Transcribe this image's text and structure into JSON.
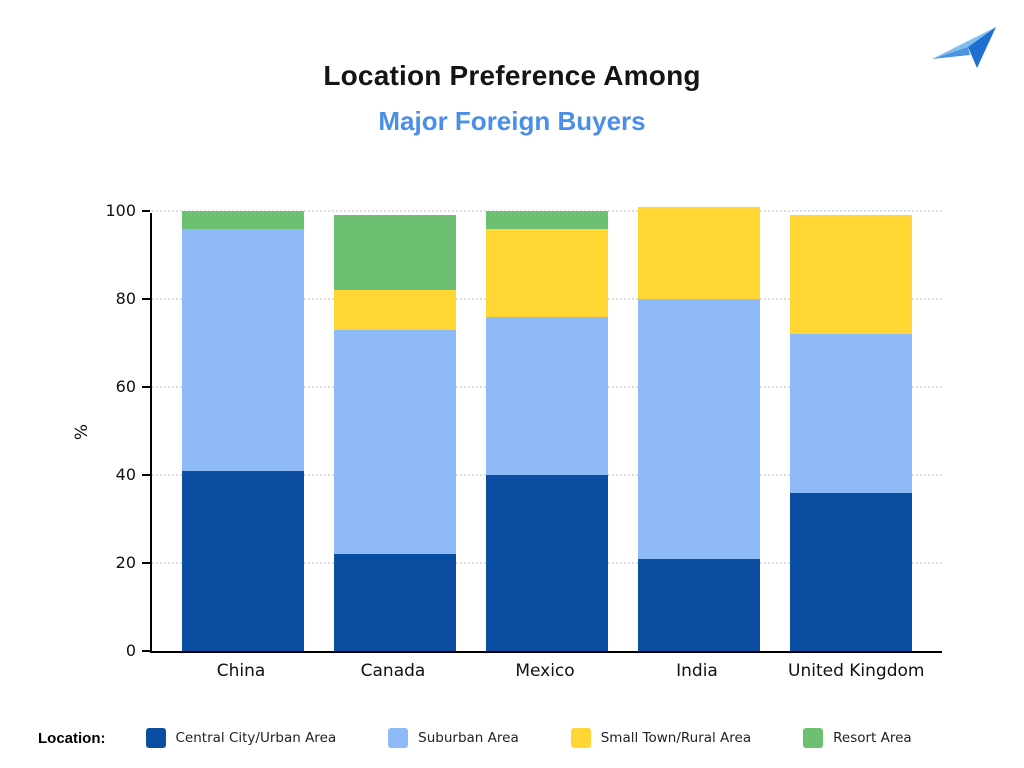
{
  "header": {
    "title_line1": "Location Preference Among",
    "title_line2": "Major Foreign Buyers",
    "title_line2_color": "#4a8fe7"
  },
  "logo": {
    "name": "paper-plane-logo"
  },
  "chart_data": {
    "type": "bar",
    "subtype": "stacked",
    "categories": [
      "China",
      "Canada",
      "Mexico",
      "India",
      "United Kingdom"
    ],
    "series": [
      {
        "name": "Central City/Urban Area",
        "color": "#0b4da1",
        "values": [
          41,
          22,
          40,
          21,
          36
        ]
      },
      {
        "name": "Suburban Area",
        "color": "#8ebbf7",
        "values": [
          55,
          51,
          36,
          59,
          36
        ]
      },
      {
        "name": "Small Town/Rural Area",
        "color": "#ffd633",
        "values": [
          0,
          9,
          20,
          21,
          27
        ]
      },
      {
        "name": "Resort Area",
        "color": "#6dbf71",
        "values": [
          4,
          17,
          4,
          0,
          0
        ]
      }
    ],
    "title": "Location Preference Among Major Foreign Buyers",
    "xlabel": "",
    "ylabel": "%",
    "yticks": [
      0,
      20,
      40,
      60,
      80,
      100
    ],
    "ylim": [
      0,
      100
    ],
    "grid": "horizontal-dotted",
    "legend_position": "bottom"
  },
  "legend": {
    "label": "Location:"
  }
}
